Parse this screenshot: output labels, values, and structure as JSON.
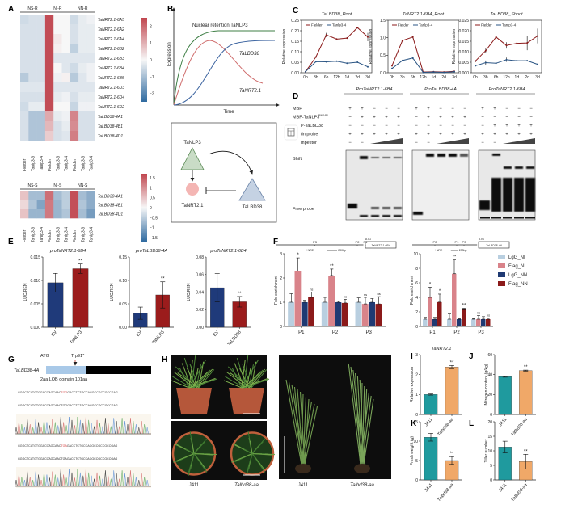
{
  "panel_labels": [
    "A",
    "B",
    "C",
    "D",
    "E",
    "F",
    "G",
    "H",
    "I",
    "J",
    "K",
    "L"
  ],
  "colors": {
    "heat_neg": "#2f6aa0",
    "heat_pos": "#c0454e",
    "fielder": "#8b1a1a",
    "tanlp3": "#2b5584",
    "ev": "#1f3a7a",
    "treat": "#9b1c1c",
    "wt": "#1f9a9e",
    "mut": "#f0a868"
  },
  "heatmap_root": {
    "groups": [
      "NS-R",
      "NI-R",
      "NN-R"
    ],
    "columns": [
      "Fielder",
      "Tanlp3-3",
      "Tanlp3-4",
      "Fielder",
      "Tanlp3-3",
      "Tanlp3-4",
      "Fielder",
      "Tanlp3-3",
      "Tanlp3-4"
    ],
    "rows": [
      "TaNRT2.1-6A5",
      "TaNRT2.1-6A2",
      "TaNRT2.1-6A4",
      "TaNRT2.1-6B2",
      "TaNRT2.1-6B3",
      "TaNRT2.1-6B4",
      "TaNRT2.1-6B5",
      "TaNRT2.1-6D3",
      "TaNRT2.1-6D4",
      "TaNRT2.1-6D2",
      "TaLBD38-4A1",
      "TaLBD38-4B1",
      "TaLBD38-4D1"
    ],
    "values": [
      [
        -0.5,
        -0.4,
        -0.4,
        2.4,
        0.0,
        0.0,
        -0.5,
        -0.2,
        -0.1
      ],
      [
        -0.4,
        -0.4,
        -0.4,
        2.4,
        0.0,
        0.0,
        -0.4,
        -0.2,
        -0.2
      ],
      [
        -0.4,
        -0.4,
        -0.4,
        2.4,
        0.2,
        0.0,
        -0.4,
        -0.2,
        -0.2
      ],
      [
        -0.4,
        -0.4,
        -0.4,
        2.4,
        0.1,
        0.0,
        -0.7,
        -0.2,
        -0.2
      ],
      [
        -0.4,
        -0.4,
        -0.4,
        2.4,
        -0.3,
        -0.3,
        -0.3,
        -0.3,
        -0.3
      ],
      [
        -0.4,
        -0.4,
        -0.4,
        2.4,
        0.0,
        -0.3,
        -0.5,
        -0.2,
        -0.1
      ],
      [
        -0.8,
        -0.4,
        -0.4,
        2.4,
        -0.1,
        0.1,
        -0.8,
        -0.3,
        -0.1
      ],
      [
        -0.3,
        -0.3,
        -0.3,
        2.4,
        -0.3,
        -0.3,
        -0.3,
        -0.3,
        -0.3
      ],
      [
        -0.4,
        -0.4,
        -0.4,
        2.4,
        -0.2,
        -0.1,
        -0.4,
        -0.2,
        -0.2
      ],
      [
        -0.5,
        -0.2,
        -0.2,
        2.4,
        0.0,
        0.0,
        -0.6,
        -0.1,
        -0.1
      ],
      [
        -0.4,
        -0.9,
        -0.9,
        1.1,
        -0.2,
        -0.1,
        1.6,
        -0.4,
        -0.4
      ],
      [
        -0.4,
        -0.9,
        -0.9,
        0.9,
        -0.4,
        -0.2,
        1.5,
        -0.4,
        -0.4
      ],
      [
        -0.4,
        -0.9,
        -0.9,
        0.6,
        -0.4,
        -0.3,
        1.7,
        -0.4,
        -0.4
      ]
    ],
    "range": [
      -2.5,
      2.5
    ],
    "colorbar_ticks": [
      "2",
      "1",
      "0",
      "−1",
      "−2"
    ]
  },
  "heatmap_shoot": {
    "groups": [
      "NS-S",
      "NI-S",
      "NN-S"
    ],
    "columns": [
      "Fielder",
      "Tanlp3-3",
      "Tanlp3-4",
      "Fielder",
      "Tanlp3-3",
      "Tanlp3-4",
      "Fielder",
      "Tanlp3-3",
      "Tanlp3-4"
    ],
    "rows": [
      "TaLBD38-4A1",
      "TaLBD38-4B1",
      "TaLBD38-4D1"
    ],
    "values": [
      [
        0.5,
        -0.7,
        -0.7,
        1.3,
        -0.7,
        -0.5,
        1.6,
        -0.7,
        -0.9
      ],
      [
        0.3,
        -0.6,
        -1.0,
        1.2,
        -0.8,
        -0.5,
        1.6,
        -0.6,
        -0.9
      ],
      [
        0.5,
        -0.8,
        -0.8,
        1.2,
        -0.8,
        -0.6,
        1.6,
        -0.7,
        -1.1
      ]
    ],
    "range": [
      -1.7,
      1.7
    ],
    "colorbar_ticks": [
      "1.5",
      "1",
      "0.5",
      "0",
      "−0.5",
      "−1",
      "−1.5"
    ]
  },
  "panel_b": {
    "curve_labels": [
      "Nuclear retention  TaNLP3",
      "TaLBD38",
      "TaNRT2.1"
    ],
    "ylabel": "Expression",
    "xlabel": "Time",
    "model": [
      "TaNLP3",
      "TaNRT2.1",
      "TaLBD38"
    ]
  },
  "chart_data": [
    {
      "type": "line",
      "title": "TaLBD38_Root",
      "ylabel": "Relative expression",
      "x": [
        "0h",
        "3h",
        "6h",
        "12h",
        "1d",
        "2d",
        "3d"
      ],
      "ylim": [
        0,
        0.25
      ],
      "yticks": [
        "0.00",
        "0.05",
        "0.10",
        "0.15",
        "0.20",
        "0.25"
      ],
      "series": [
        {
          "name": "Fielder",
          "values": [
            0.005,
            0.075,
            0.18,
            0.16,
            0.165,
            0.215,
            0.17
          ],
          "err": [
            0.001,
            0.004,
            0.01,
            0.004,
            0.004,
            0.004,
            0.02
          ]
        },
        {
          "name": "Tanlp3-4",
          "values": [
            0.005,
            0.053,
            0.052,
            0.055,
            0.045,
            0.05,
            0.028
          ],
          "err": [
            0.001,
            0.002,
            0.002,
            0.002,
            0.002,
            0.002,
            0.002
          ]
        }
      ]
    },
    {
      "type": "line",
      "title": "TaNRT2.1-6B4_Root",
      "ylabel": "Relative expression",
      "x": [
        "0h",
        "3h",
        "6h",
        "12h",
        "1d",
        "2d",
        "3d"
      ],
      "ylim": [
        0,
        1.5
      ],
      "yticks": [
        "0.0",
        "0.5",
        "1.0",
        "1.5"
      ],
      "series": [
        {
          "name": "Fielder",
          "values": [
            0.2,
            0.92,
            1.02,
            0.02,
            0.03,
            0.02,
            0.04
          ],
          "err": [
            0.02,
            0.02,
            0.03,
            0.01,
            0.01,
            0.01,
            0.01
          ]
        },
        {
          "name": "Tanlp3-4",
          "values": [
            0.12,
            0.35,
            0.42,
            0.01,
            0.02,
            0.01,
            0.03
          ],
          "err": [
            0.01,
            0.02,
            0.03,
            0.01,
            0.01,
            0.01,
            0.01
          ]
        }
      ]
    },
    {
      "type": "line",
      "title": "TaLBD38_Shoot",
      "ylabel": "Relative expression",
      "x": [
        "0h",
        "3h",
        "6h",
        "12h",
        "1d",
        "2d",
        "3d"
      ],
      "ylim": [
        0,
        0.025
      ],
      "yticks": [
        "0.000",
        "0.005",
        "0.010",
        "0.015",
        "0.020",
        "0.025"
      ],
      "series": [
        {
          "name": "Fielder",
          "values": [
            0.0055,
            0.0105,
            0.017,
            0.013,
            0.014,
            0.0142,
            0.0175
          ],
          "err": [
            0.0005,
            0.001,
            0.0025,
            0.0015,
            0.0015,
            0.0035,
            0.0035
          ]
        },
        {
          "name": "Tanlp3-4",
          "values": [
            0.0033,
            0.0048,
            0.0045,
            0.0062,
            0.0057,
            0.0057,
            0.004
          ],
          "err": [
            0.0003,
            0.001,
            0.0003,
            0.001,
            0.0003,
            0.0003,
            0.0003
          ]
        }
      ]
    },
    {
      "type": "bar",
      "title": "proTaNRT2.1-6B4",
      "ylabel": "LUC/REN",
      "categories": [
        "EV",
        "TaNLP3"
      ],
      "values": [
        0.0095,
        0.0125
      ],
      "err": [
        0.002,
        0.001
      ],
      "sig": [
        "",
        "**"
      ],
      "ylim": [
        0,
        0.015
      ],
      "yticks": [
        "0.000",
        "0.005",
        "0.010",
        "0.015"
      ]
    },
    {
      "type": "bar",
      "title": "proTaLBD38-4A",
      "ylabel": "LUC/REN",
      "categories": [
        "EV",
        "TaNLP3"
      ],
      "values": [
        0.03,
        0.069
      ],
      "err": [
        0.013,
        0.028
      ],
      "sig": [
        "",
        "**"
      ],
      "ylim": [
        0,
        0.15
      ],
      "yticks": [
        "0.00",
        "0.05",
        "0.10",
        "0.15"
      ]
    },
    {
      "type": "bar",
      "title": "proTaNRT2.1-6B4",
      "ylabel": "LUC/REN",
      "categories": [
        "EV",
        "TaLBD38"
      ],
      "values": [
        0.045,
        0.029
      ],
      "err": [
        0.016,
        0.006
      ],
      "sig": [
        "",
        "**"
      ],
      "ylim": [
        0,
        0.08
      ],
      "yticks": [
        "0.00",
        "0.02",
        "0.04",
        "0.06",
        "0.08"
      ]
    },
    {
      "type": "bar",
      "ylabel": "Fold enrichment",
      "categories": [
        "P1",
        "P2",
        "P3"
      ],
      "ylim": [
        0,
        3
      ],
      "yticks": [
        "0",
        "1",
        "2",
        "3"
      ],
      "series": [
        {
          "name": "LgG_NI",
          "values": [
            1,
            1,
            1
          ],
          "err": [
            0.35,
            0.2,
            0.18
          ]
        },
        {
          "name": "Flag_NI",
          "values": [
            2.28,
            2.1,
            0.93
          ],
          "err": [
            0.55,
            0.27,
            0.27
          ]
        },
        {
          "name": "LgG_NN",
          "values": [
            1,
            1,
            1
          ],
          "err": [
            0.08,
            0.05,
            0.15
          ]
        },
        {
          "name": "Flag_NN",
          "values": [
            1.2,
            0.97,
            0.93
          ],
          "err": [
            0.22,
            0.15,
            0.3
          ]
        }
      ],
      "sig": [
        [
          "",
          "*",
          "",
          "ns"
        ],
        [
          "",
          "**",
          "",
          "ns"
        ],
        [
          "",
          "ns",
          "",
          "ns"
        ]
      ],
      "schematic": {
        "sites": [
          "P3",
          "P2",
          "P1"
        ],
        "atg": "ATG",
        "gene": "TaNRT2.1-6B4",
        "nre": "+NRE",
        "scale": "200bp"
      }
    },
    {
      "type": "bar",
      "ylabel": "Fold enrichment",
      "categories": [
        "P1",
        "P2",
        "P3"
      ],
      "ylim": [
        0,
        10
      ],
      "yticks": [
        "0",
        "2",
        "4",
        "6",
        "8",
        "10"
      ],
      "series": [
        {
          "name": "LgG_NI",
          "values": [
            1,
            1,
            1
          ],
          "err": [
            0.25,
            0.7,
            0.1
          ]
        },
        {
          "name": "Flag_NI",
          "values": [
            4,
            7.25,
            1
          ],
          "err": [
            1.4,
            1.9,
            0.5
          ]
        },
        {
          "name": "LgG_NN",
          "values": [
            1,
            1,
            1
          ],
          "err": [
            0.25,
            0.1,
            0.35
          ]
        },
        {
          "name": "Flag_NN",
          "values": [
            3.35,
            2.3,
            1
          ],
          "err": [
            1.1,
            0.2,
            0.15
          ]
        }
      ],
      "sig": [
        [
          "",
          "*",
          "",
          "*"
        ],
        [
          "",
          "**",
          "",
          "**"
        ],
        [
          "",
          "ns",
          "",
          "ns"
        ]
      ],
      "legend": [
        "LgG_NI",
        "Flag_NI",
        "LgG_NN",
        "Flag_NN"
      ],
      "schematic": {
        "sites": [
          "P2",
          "P1",
          "P3"
        ],
        "atg": "ATG",
        "gene": "TaLBD38-4A",
        "nre": "+NRE",
        "scale": "200bp"
      }
    },
    {
      "type": "bar",
      "title": "TaNRT2.1",
      "ylabel": "Relative expression",
      "categories": [
        "J411",
        "Talbd38-aa"
      ],
      "values": [
        1.0,
        2.38
      ],
      "err": [
        0.03,
        0.08
      ],
      "sig": [
        "",
        "**"
      ],
      "ylim": [
        0,
        3
      ],
      "yticks": [
        "0",
        "1",
        "2",
        "3"
      ]
    },
    {
      "type": "bar",
      "ylabel": "Nitrogen content (g/kg)",
      "categories": [
        "J411",
        "Talbd38-aa"
      ],
      "values": [
        38,
        44
      ],
      "err": [
        0.6,
        0.5
      ],
      "sig": [
        "",
        "**"
      ],
      "ylim": [
        0,
        60
      ],
      "yticks": [
        "0",
        "20",
        "40",
        "60"
      ]
    },
    {
      "type": "bar",
      "ylabel": "Fresh weight (g)",
      "categories": [
        "J411",
        "Talbd38-aa"
      ],
      "values": [
        11,
        5
      ],
      "err": [
        1,
        1
      ],
      "sig": [
        "",
        "**"
      ],
      "ylim": [
        0,
        15
      ],
      "yticks": [
        "0",
        "5",
        "10",
        "15"
      ]
    },
    {
      "type": "bar",
      "ylabel": "Tiller number",
      "categories": [
        "J411",
        "Talbd38-aa"
      ],
      "values": [
        11.3,
        6.3
      ],
      "err": [
        2,
        2.5
      ],
      "sig": [
        "",
        "**"
      ],
      "ylim": [
        0,
        20
      ],
      "yticks": [
        "0",
        "5",
        "10",
        "15",
        "20"
      ]
    }
  ],
  "emsa": {
    "promoters": [
      "ProTaNRT2.1-6B4",
      "ProTaLBD38-4A",
      "ProTaNRT2.1-6B4"
    ],
    "row_labels": [
      "MBP",
      "MBP-TaNLP3",
      "P-TaLBD38",
      "tin probe",
      "mpetitor"
    ],
    "row_label_sup": "RWP-RK",
    "signs": [
      [
        [
          "+",
          "+",
          "−",
          "−",
          "−"
        ],
        [
          "−",
          "+",
          "+",
          "+",
          "+"
        ],
        [
          "−",
          "−",
          "−",
          "−",
          "−"
        ],
        [
          "+",
          "+",
          "+",
          "+",
          "+"
        ],
        [
          "−",
          "−"
        ]
      ],
      [
        [
          "+",
          "+",
          "−",
          "−",
          "−"
        ],
        [
          "−",
          "+",
          "+",
          "+",
          "+"
        ],
        [
          "−",
          "−",
          "−",
          "−",
          "−"
        ],
        [
          "+",
          "+",
          "+",
          "+",
          "+"
        ],
        [
          "−",
          "−"
        ]
      ],
      [
        [
          "+",
          "+",
          "−",
          "−",
          "−"
        ],
        [
          "−",
          "−",
          "−",
          "−",
          "−"
        ],
        [
          "−",
          "+",
          "+",
          "+",
          "+"
        ],
        [
          "+",
          "+",
          "+",
          "+",
          "+"
        ],
        [
          "−",
          "−"
        ]
      ]
    ],
    "shift_label": "Shift",
    "free_label": "Free probe"
  },
  "panel_g": {
    "atg": "ATG",
    "mutation": "Trp91*",
    "gene": "TaLBD38-4A",
    "domain_label": "2aa  LOB domain  101aa",
    "seq_wt": [
      "GGGCTCATGTGGACCAGCAAC",
      "TGG",
      "GACCTCTGCCAGGCCGCCGCCGAG"
    ],
    "seq_wt_read": "GGGCTCATGTGGACCAGCAACTGGGACCTCTGCCAGGCCGCCGCCGAG",
    "seq_mut": [
      "GGGCTCATGTGGACCAGCAAC",
      "TGA",
      "GACCTCTGCCAGGCCGCCGCCGAG"
    ],
    "seq_mut_read": "GGGCTCATGTGGACCAGCAACTGAGACCTCTGCCAGGCCGCCGCCGAG"
  },
  "panel_h": {
    "labels": [
      "J411",
      "Talbd38-aa",
      "J411",
      "Talbd38-aa"
    ]
  }
}
